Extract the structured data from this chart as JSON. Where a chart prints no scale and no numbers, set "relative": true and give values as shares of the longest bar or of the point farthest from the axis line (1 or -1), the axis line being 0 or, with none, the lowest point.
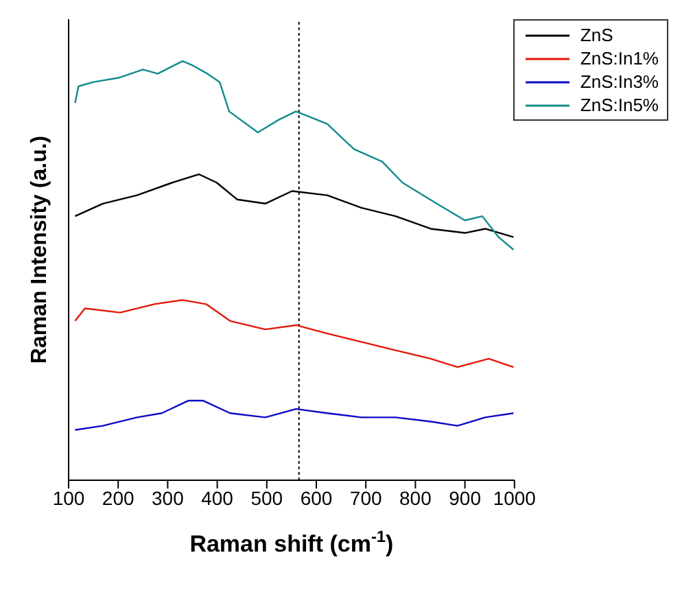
{
  "chart_data": {
    "type": "line",
    "xlabel": "Raman shift (cm$^{-1}$)",
    "ylabel": "Raman Intensity (a.u.)",
    "relative": true,
    "xlim": [
      100,
      1000
    ],
    "xticks": [
      100,
      200,
      300,
      400,
      500,
      600,
      700,
      800,
      900,
      1000
    ],
    "legend": "top right",
    "marker": "none",
    "line_style": "solid",
    "grid": false,
    "ref_lines": [
      {
        "axis": "x",
        "value": 565,
        "line_style": "dotted",
        "color": "#000000"
      }
    ],
    "series": [
      {
        "name": "ZnS",
        "color": "#000000",
        "x": [
          113,
          169,
          238,
          309,
          363,
          399,
          440,
          497,
          551,
          622,
          691,
          760,
          831,
          900,
          941,
          998
        ],
        "values": [
          0.63,
          0.66,
          0.68,
          0.71,
          0.73,
          0.71,
          0.67,
          0.66,
          0.69,
          0.68,
          0.65,
          0.63,
          0.6,
          0.59,
          0.6,
          0.58
        ]
      },
      {
        "name": "ZnS:In1%",
        "color": "#e3170a",
        "x": [
          113,
          133,
          204,
          273,
          330,
          378,
          426,
          497,
          559,
          622,
          691,
          760,
          831,
          885,
          948,
          998
        ],
        "values": [
          0.38,
          0.41,
          0.4,
          0.42,
          0.43,
          0.42,
          0.38,
          0.36,
          0.37,
          0.35,
          0.33,
          0.31,
          0.29,
          0.27,
          0.29,
          0.27
        ]
      },
      {
        "name": "ZnS:In3%",
        "color": "#0a0ac8",
        "x": [
          113,
          169,
          238,
          288,
          342,
          371,
          426,
          497,
          559,
          622,
          691,
          760,
          831,
          885,
          941,
          998
        ],
        "values": [
          0.12,
          0.13,
          0.15,
          0.16,
          0.19,
          0.19,
          0.16,
          0.15,
          0.17,
          0.16,
          0.15,
          0.15,
          0.14,
          0.13,
          0.15,
          0.16
        ]
      },
      {
        "name": "ZnS:In5%",
        "color": "#138a8a",
        "x": [
          113,
          120,
          150,
          200,
          250,
          280,
          330,
          350,
          380,
          405,
          424,
          482,
          524,
          559,
          622,
          676,
          733,
          774,
          843,
          900,
          935,
          968,
          998
        ],
        "values": [
          0.9,
          0.94,
          0.95,
          0.96,
          0.98,
          0.97,
          1.0,
          0.99,
          0.97,
          0.95,
          0.88,
          0.83,
          0.86,
          0.88,
          0.85,
          0.79,
          0.76,
          0.71,
          0.66,
          0.62,
          0.63,
          0.58,
          0.55
        ]
      }
    ]
  }
}
